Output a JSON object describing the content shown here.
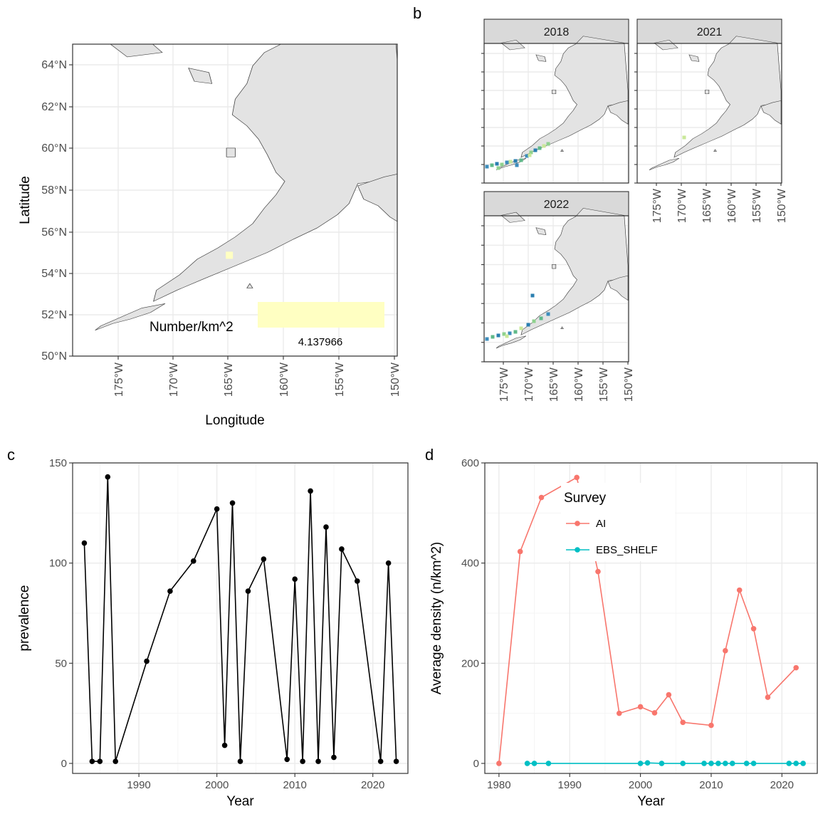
{
  "panel_labels": {
    "a": "a",
    "b": "b",
    "c": "c",
    "d": "d"
  },
  "chart_data": [
    {
      "panel": "a",
      "type": "map",
      "xlabel": "Longitude",
      "ylabel": "Latitude",
      "x_ticks": [
        "175°W",
        "170°W",
        "165°W",
        "160°W",
        "155°W",
        "150°W"
      ],
      "y_ticks": [
        "64°N",
        "62°N",
        "60°N",
        "58°N",
        "56°N",
        "54°N",
        "52°N",
        "50°N"
      ],
      "xlim": [
        -179,
        -150
      ],
      "ylim": [
        50,
        65
      ],
      "legend_title": "Number/km^2",
      "legend_value": "4.137966",
      "legend_color": "#ffffc2",
      "points": [
        {
          "lon": -165,
          "lat": 54.85,
          "color": "#ffffc2"
        }
      ]
    },
    {
      "panel": "b",
      "type": "map-facets",
      "facets": [
        "2018",
        "2021",
        "2022"
      ],
      "x_ticks": [
        "175°W",
        "170°W",
        "165°W",
        "160°W",
        "155°W",
        "150°W"
      ],
      "strip_color": "#d9d9d9"
    },
    {
      "panel": "c",
      "type": "line",
      "xlabel": "Year",
      "ylabel": "prevalence",
      "xlim": [
        1981.5,
        2024.5
      ],
      "ylim": [
        -5,
        150
      ],
      "x_ticks": [
        1990,
        2000,
        2010,
        2020
      ],
      "y_ticks": [
        0,
        50,
        100,
        150
      ],
      "color": "#000000",
      "x": [
        1983,
        1984,
        1985,
        1986,
        1987,
        1991,
        1994,
        1997,
        2000,
        2001,
        2002,
        2003,
        2004,
        2006,
        2009,
        2010,
        2011,
        2012,
        2013,
        2014,
        2015,
        2016,
        2018,
        2021,
        2022,
        2023
      ],
      "y": [
        110,
        1,
        1,
        143,
        1,
        51,
        86,
        101,
        127,
        9,
        130,
        1,
        86,
        102,
        2,
        92,
        1,
        136,
        1,
        118,
        3,
        107,
        91,
        1,
        100,
        1
      ]
    },
    {
      "panel": "d",
      "type": "line",
      "xlabel": "Year",
      "ylabel": "Average density (n/km^2)",
      "xlim": [
        1978,
        2025
      ],
      "ylim": [
        -20,
        600
      ],
      "x_ticks": [
        1980,
        1990,
        2000,
        2010,
        2020
      ],
      "y_ticks": [
        0,
        200,
        400,
        600
      ],
      "legend_title": "Survey",
      "series": [
        {
          "name": "AI",
          "color": "#f8766d",
          "x": [
            1980,
            1983,
            1986,
            1991,
            1994,
            1997,
            2000,
            2002,
            2004,
            2006,
            2010,
            2012,
            2014,
            2016,
            2018,
            2022
          ],
          "y": [
            0,
            423,
            531,
            571,
            383,
            100,
            113,
            101,
            137,
            82,
            76,
            225,
            346,
            269,
            132,
            191
          ]
        },
        {
          "name": "EBS_SHELF",
          "color": "#00bfc4",
          "x": [
            1984,
            1985,
            1987,
            2000,
            2001,
            2003,
            2006,
            2009,
            2010,
            2011,
            2012,
            2013,
            2015,
            2016,
            2021,
            2022,
            2023
          ],
          "y": [
            0,
            0,
            0,
            0,
            1,
            0,
            0,
            0,
            0,
            0,
            0,
            0,
            0,
            0,
            0,
            0,
            0
          ]
        }
      ]
    }
  ]
}
